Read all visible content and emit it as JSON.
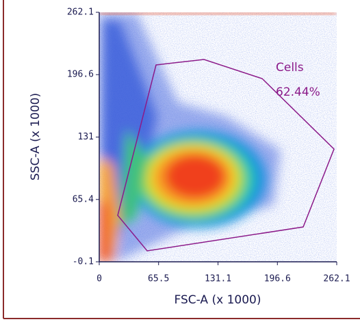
{
  "chart_data": {
    "type": "density",
    "xlabel": "FSC-A (x 1000)",
    "ylabel": "SSC-A (x 1000)",
    "xlim": [
      0,
      262.1
    ],
    "ylim": [
      -0.1,
      262.1
    ],
    "xticks": [
      0,
      65.5,
      131.1,
      196.6,
      262.1
    ],
    "yticks": [
      -0.1,
      65.4,
      131,
      196.6,
      262.1
    ],
    "gate": {
      "name": "Cells",
      "percent_label": "62.44%",
      "color": "#8b1a89",
      "x": [
        62.7,
        115.6,
        179.8,
        259.1,
        225.1,
        52.9,
        20.4
      ],
      "y": [
        206.8,
        212.5,
        192.4,
        118.4,
        36.5,
        11.4,
        48.7
      ]
    }
  }
}
